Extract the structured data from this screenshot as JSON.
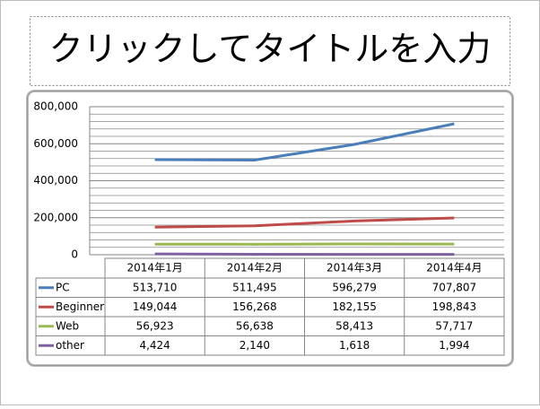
{
  "slide": {
    "title": "クリックしてタイトルを入力"
  },
  "chart_data": {
    "type": "line",
    "categories": [
      "2014年1月",
      "2014年2月",
      "2014年3月",
      "2014年4月"
    ],
    "series": [
      {
        "name": "PC",
        "color": "#4a7ebb",
        "values": [
          513710,
          511495,
          596279,
          707807
        ],
        "value_labels": [
          "513,710",
          "511,495",
          "596,279",
          "707,807"
        ]
      },
      {
        "name": "Beginner",
        "color": "#be4b48",
        "values": [
          149044,
          156268,
          182155,
          198843
        ],
        "value_labels": [
          "149,044",
          "156,268",
          "182,155",
          "198,843"
        ]
      },
      {
        "name": "Web",
        "color": "#98b954",
        "values": [
          56923,
          56638,
          58413,
          57717
        ],
        "value_labels": [
          "56,923",
          "56,638",
          "58,413",
          "57,717"
        ]
      },
      {
        "name": "other",
        "color": "#7d60a0",
        "values": [
          4424,
          2140,
          1618,
          1994
        ],
        "value_labels": [
          "4,424",
          "2,140",
          "1,618",
          "1,994"
        ]
      }
    ],
    "ylim": [
      0,
      800000
    ],
    "yticks": [
      0,
      {
        "value": 200000,
        "label": "200,000"
      },
      {
        "value": 400000,
        "label": "400,000"
      },
      {
        "value": 600000,
        "label": "600,000"
      },
      {
        "value": 800000,
        "label": "800,000"
      }
    ],
    "minor_yticks": [
      40000,
      80000,
      120000,
      160000,
      240000,
      280000,
      320000,
      360000,
      440000,
      480000,
      520000,
      560000,
      640000,
      680000,
      720000,
      760000
    ],
    "grid": true
  }
}
